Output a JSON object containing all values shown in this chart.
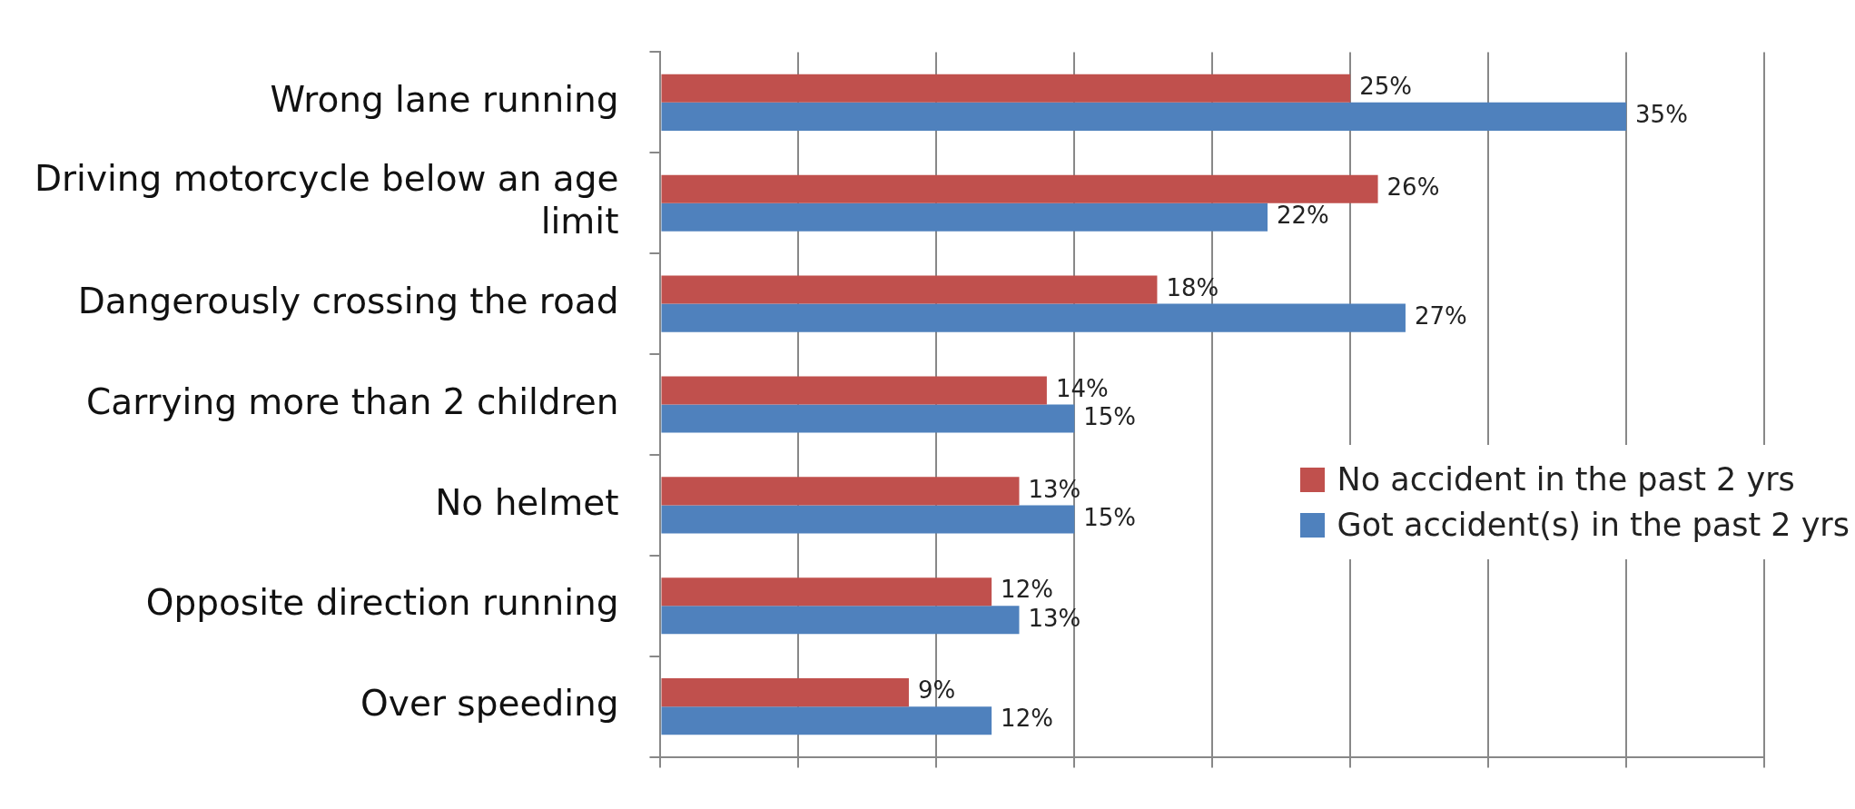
{
  "chart_data": {
    "type": "bar",
    "orientation": "horizontal",
    "categories": [
      "Wrong lane running",
      "Driving motorcycle below an age limit",
      "Dangerously crossing the road",
      "Carrying more than 2 children",
      "No helmet",
      "Opposite direction running",
      "Over speeding"
    ],
    "series": [
      {
        "name": "No accident in the past 2 yrs",
        "color": "#c0504d",
        "values": [
          25,
          26,
          18,
          14,
          13,
          12,
          9
        ],
        "value_labels": [
          "25%",
          "26%",
          "18%",
          "14%",
          "13%",
          "12%",
          "9%"
        ]
      },
      {
        "name": "Got accident(s) in the past 2 yrs",
        "color": "#4f81bd",
        "values": [
          35,
          22,
          27,
          15,
          15,
          13,
          12
        ],
        "value_labels": [
          "35%",
          "22%",
          "27%",
          "15%",
          "15%",
          "13%",
          "12%"
        ]
      }
    ],
    "xlim": [
      0,
      40
    ],
    "xticks": [
      {
        "value": 0,
        "label": null
      },
      {
        "value": 5,
        "label": null
      },
      {
        "value": 10,
        "label": null
      },
      {
        "value": 15,
        "label": null
      },
      {
        "value": 20,
        "label": null
      },
      {
        "value": 25,
        "label": null
      },
      {
        "value": 30,
        "label": null
      },
      {
        "value": 35,
        "label": null
      },
      {
        "value": 40,
        "label": null
      }
    ],
    "tick_labels": "y",
    "grid": "x",
    "legend": "right"
  }
}
